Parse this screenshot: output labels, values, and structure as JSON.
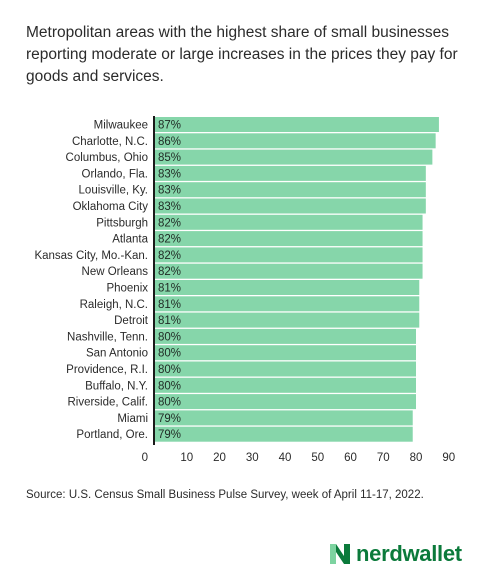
{
  "title": "Metropolitan areas with the highest share of small businesses reporting moderate or large increases in the prices they pay for goods and services.",
  "source": "Source: U.S. Census Small Business Pulse Survey, week of April 11-17, 2022.",
  "brand": {
    "name": "nerdwallet",
    "color": "#0b7a3b"
  },
  "chart_data": {
    "type": "bar",
    "orientation": "horizontal",
    "bar_color": "#86d6aa",
    "categories": [
      "Milwaukee",
      "Charlotte, N.C.",
      "Columbus, Ohio",
      "Orlando, Fla.",
      "Louisville, Ky.",
      "Oklahoma City",
      "Pittsburgh",
      "Atlanta",
      "Kansas City, Mo.-Kan.",
      "New Orleans",
      "Phoenix",
      "Raleigh, N.C.",
      "Detroit",
      "Nashville, Tenn.",
      "San Antonio",
      "Providence, R.I.",
      "Buffalo, N.Y.",
      "Riverside, Calif.",
      "Miami",
      "Portland, Ore."
    ],
    "values": [
      87,
      86,
      85,
      83,
      83,
      83,
      82,
      82,
      82,
      82,
      81,
      81,
      81,
      80,
      80,
      80,
      80,
      80,
      79,
      79
    ],
    "data_labels": [
      "87%",
      "86%",
      "85%",
      "83%",
      "83%",
      "83%",
      "82%",
      "82%",
      "82%",
      "82%",
      "81%",
      "81%",
      "81%",
      "80%",
      "80%",
      "80%",
      "80%",
      "80%",
      "79%",
      "79%"
    ],
    "xlim": [
      0,
      90
    ],
    "xticks": [
      "0",
      "10",
      "20",
      "30",
      "40",
      "50",
      "60",
      "70",
      "80",
      "90"
    ],
    "grid": false
  }
}
